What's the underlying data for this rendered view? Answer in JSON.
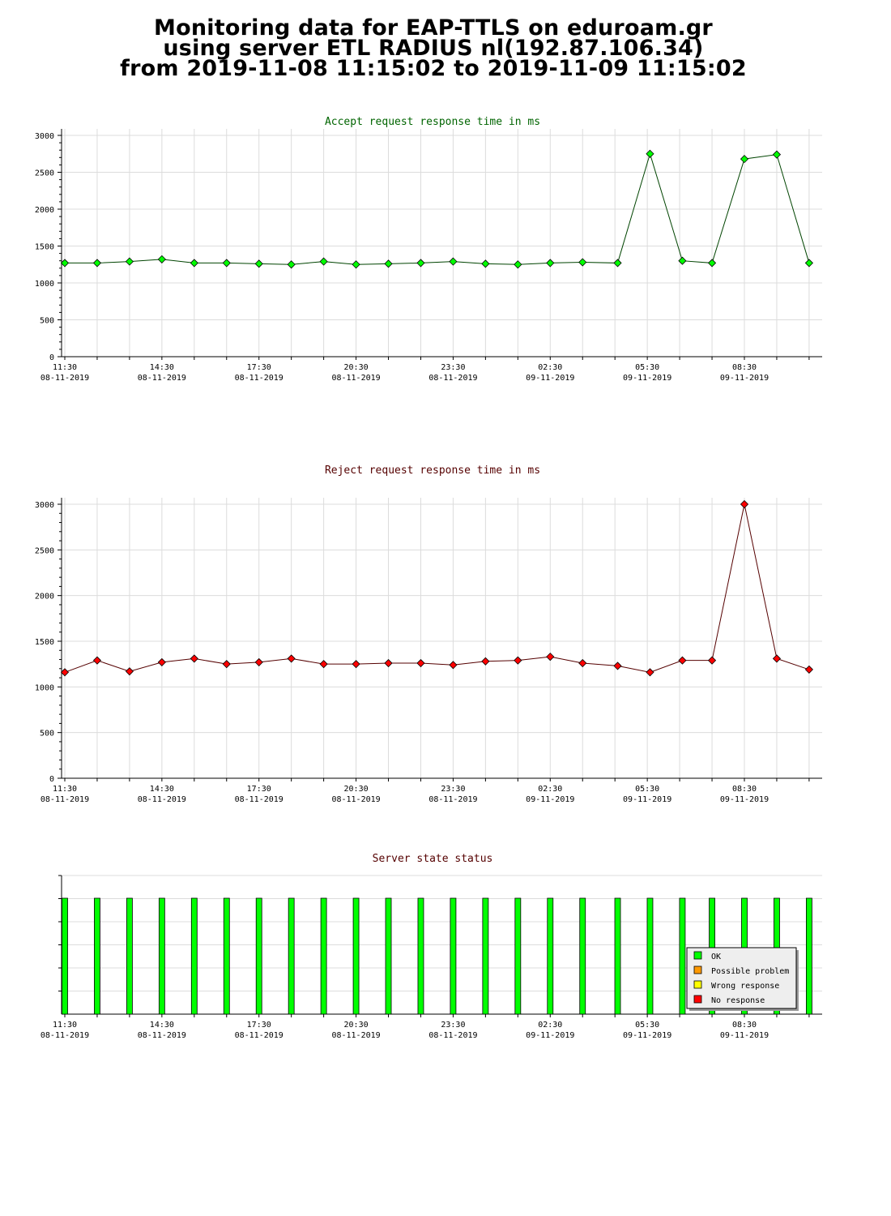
{
  "header": {
    "line1": "Monitoring data for EAP-TTLS on eduroam.gr",
    "line2": "using server ETL RADIUS nl(192.87.106.34)",
    "line3": "from 2019-11-08 11:15:02 to 2019-11-09 11:15:02"
  },
  "colors": {
    "accept_point": "#00ff00",
    "accept_line": "#004400",
    "accept_title": "#006400",
    "reject_point": "#ff0000",
    "reject_line": "#550000",
    "reject_title": "#550000",
    "status_title": "#550000",
    "ok": "#00ff00",
    "possible_problem": "#ff9900",
    "wrong_response": "#ffff00",
    "no_response": "#ff0000",
    "grid": "#dcdcdc"
  },
  "x_ticks": [
    {
      "time": "11:30",
      "date": "08-11-2019"
    },
    {
      "time": "14:30",
      "date": "08-11-2019"
    },
    {
      "time": "17:30",
      "date": "08-11-2019"
    },
    {
      "time": "20:30",
      "date": "08-11-2019"
    },
    {
      "time": "23:30",
      "date": "08-11-2019"
    },
    {
      "time": "02:30",
      "date": "09-11-2019"
    },
    {
      "time": "05:30",
      "date": "09-11-2019"
    },
    {
      "time": "08:30",
      "date": "09-11-2019"
    }
  ],
  "chart_data": [
    {
      "type": "line",
      "title": "Accept request response time in ms",
      "xlabel": "",
      "ylabel": "",
      "ylim": [
        0,
        3000
      ],
      "y_ticks": [
        0,
        500,
        1000,
        1500,
        2000,
        2500,
        3000
      ],
      "x_range": [
        "2019-11-08 11:15",
        "2019-11-09 11:15"
      ],
      "grid": true,
      "x": [
        "2019-11-08 11:30",
        "2019-11-08 12:30",
        "2019-11-08 13:30",
        "2019-11-08 14:30",
        "2019-11-08 15:30",
        "2019-11-08 16:30",
        "2019-11-08 17:30",
        "2019-11-08 18:30",
        "2019-11-08 19:30",
        "2019-11-08 20:30",
        "2019-11-08 21:30",
        "2019-11-08 22:30",
        "2019-11-08 23:30",
        "2019-11-09 00:30",
        "2019-11-09 01:30",
        "2019-11-09 02:30",
        "2019-11-09 03:30",
        "2019-11-09 04:35",
        "2019-11-09 05:35",
        "2019-11-09 06:35",
        "2019-11-09 07:30",
        "2019-11-09 08:30",
        "2019-11-09 09:30",
        "2019-11-09 10:30"
      ],
      "values": [
        1270,
        1270,
        1290,
        1320,
        1270,
        1270,
        1260,
        1250,
        1290,
        1250,
        1260,
        1270,
        1290,
        1260,
        1250,
        1270,
        1280,
        1270,
        2750,
        1300,
        1270,
        2680,
        2740,
        1270
      ]
    },
    {
      "type": "line",
      "title": "Reject request response time in ms",
      "xlabel": "",
      "ylabel": "",
      "ylim": [
        0,
        3000
      ],
      "y_ticks": [
        0,
        500,
        1000,
        1500,
        2000,
        2500,
        3000
      ],
      "x_range": [
        "2019-11-08 11:15",
        "2019-11-09 11:15"
      ],
      "grid": true,
      "x": [
        "2019-11-08 11:30",
        "2019-11-08 12:30",
        "2019-11-08 13:30",
        "2019-11-08 14:30",
        "2019-11-08 15:30",
        "2019-11-08 16:30",
        "2019-11-08 17:30",
        "2019-11-08 18:30",
        "2019-11-08 19:30",
        "2019-11-08 20:30",
        "2019-11-08 21:30",
        "2019-11-08 22:30",
        "2019-11-08 23:30",
        "2019-11-09 00:30",
        "2019-11-09 01:30",
        "2019-11-09 02:30",
        "2019-11-09 03:30",
        "2019-11-09 04:35",
        "2019-11-09 05:35",
        "2019-11-09 06:35",
        "2019-11-09 07:30",
        "2019-11-09 08:30",
        "2019-11-09 09:30",
        "2019-11-09 10:30"
      ],
      "values": [
        1160,
        1290,
        1170,
        1270,
        1310,
        1250,
        1270,
        1310,
        1250,
        1250,
        1260,
        1260,
        1240,
        1280,
        1290,
        1330,
        1260,
        1230,
        1160,
        1290,
        1290,
        3000,
        1310,
        1190
      ]
    },
    {
      "type": "bar",
      "title": "Server state status",
      "xlabel": "",
      "ylabel": "",
      "x_range": [
        "2019-11-08 11:15",
        "2019-11-09 11:15"
      ],
      "legend_position": "bottom-right",
      "legend": [
        "OK",
        "Possible problem",
        "Wrong response",
        "No response"
      ],
      "x": [
        "2019-11-08 11:30",
        "2019-11-08 12:30",
        "2019-11-08 13:30",
        "2019-11-08 14:30",
        "2019-11-08 15:30",
        "2019-11-08 16:30",
        "2019-11-08 17:30",
        "2019-11-08 18:30",
        "2019-11-08 19:30",
        "2019-11-08 20:30",
        "2019-11-08 21:30",
        "2019-11-08 22:30",
        "2019-11-08 23:30",
        "2019-11-09 00:30",
        "2019-11-09 01:30",
        "2019-11-09 02:30",
        "2019-11-09 03:30",
        "2019-11-09 04:35",
        "2019-11-09 05:35",
        "2019-11-09 06:35",
        "2019-11-09 07:30",
        "2019-11-09 08:30",
        "2019-11-09 09:30",
        "2019-11-09 10:30"
      ],
      "states": [
        "OK",
        "OK",
        "OK",
        "OK",
        "OK",
        "OK",
        "OK",
        "OK",
        "OK",
        "OK",
        "OK",
        "OK",
        "OK",
        "OK",
        "OK",
        "OK",
        "OK",
        "OK",
        "OK",
        "OK",
        "OK",
        "OK",
        "OK",
        "OK"
      ]
    }
  ]
}
